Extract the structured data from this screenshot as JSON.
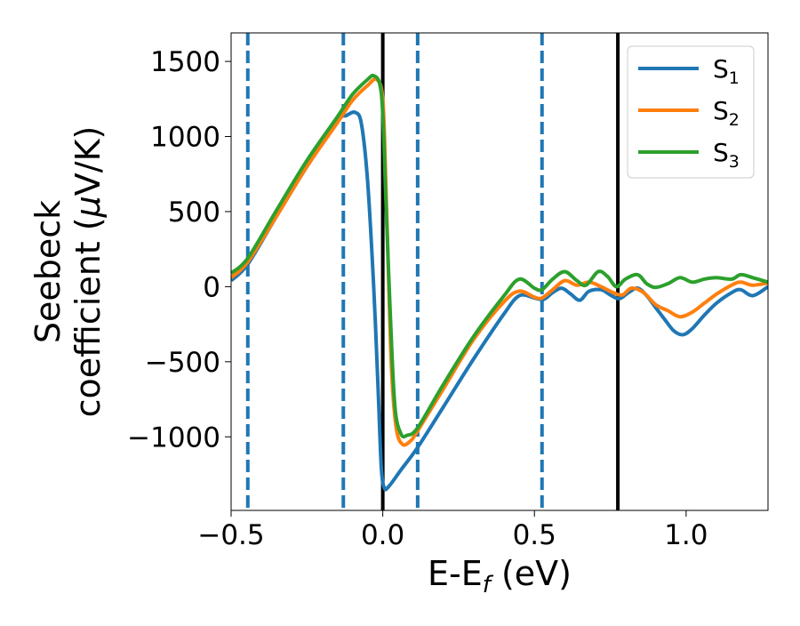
{
  "chart_data": {
    "type": "line",
    "xlabel": "E-E",
    "xlabel_sub": "f",
    "xlabel_unit": " (eV)",
    "ylabel_line1": "Seebeck",
    "ylabel_line2_pre": "coefficient  (",
    "ylabel_mu": "μ",
    "ylabel_line2_post": "V/K)",
    "xlim": [
      -0.5,
      1.27
    ],
    "ylim": [
      -1490,
      1690
    ],
    "xticks": [
      -0.5,
      0.0,
      0.5,
      1.0
    ],
    "xtick_labels": [
      "−0.5",
      "0.0",
      "0.5",
      "1.0"
    ],
    "yticks": [
      -1000,
      -500,
      0,
      500,
      1000,
      1500
    ],
    "ytick_labels": [
      "−1000",
      "−500",
      "0",
      "500",
      "1000",
      "1500"
    ],
    "grid": false,
    "legend_position": "top-right",
    "dashed_vlines": [
      -0.445,
      -0.13,
      0.115,
      0.525
    ],
    "dashed_vline_color": "#1f77b4",
    "solid_vlines": [
      0.0,
      0.775
    ],
    "solid_vline_color": "#000000",
    "series": [
      {
        "name": "S",
        "sub": "1",
        "color": "#1f77b4",
        "points": [
          [
            -0.5,
            40
          ],
          [
            -0.445,
            150
          ],
          [
            -0.35,
            470
          ],
          [
            -0.25,
            800
          ],
          [
            -0.15,
            1100
          ],
          [
            -0.12,
            1140
          ],
          [
            -0.09,
            1160
          ],
          [
            -0.07,
            1080
          ],
          [
            -0.05,
            700
          ],
          [
            -0.03,
            0
          ],
          [
            -0.015,
            -700
          ],
          [
            -0.005,
            -1200
          ],
          [
            0.005,
            -1340
          ],
          [
            0.02,
            -1330
          ],
          [
            0.06,
            -1220
          ],
          [
            0.115,
            -1070
          ],
          [
            0.2,
            -800
          ],
          [
            0.3,
            -480
          ],
          [
            0.4,
            -180
          ],
          [
            0.45,
            -60
          ],
          [
            0.5,
            -75
          ],
          [
            0.53,
            -85
          ],
          [
            0.56,
            -40
          ],
          [
            0.59,
            -10
          ],
          [
            0.62,
            -50
          ],
          [
            0.65,
            -90
          ],
          [
            0.68,
            -30
          ],
          [
            0.72,
            -20
          ],
          [
            0.75,
            -55
          ],
          [
            0.78,
            -80
          ],
          [
            0.81,
            -40
          ],
          [
            0.84,
            -10
          ],
          [
            0.87,
            -60
          ],
          [
            0.9,
            -140
          ],
          [
            0.93,
            -220
          ],
          [
            0.96,
            -295
          ],
          [
            0.99,
            -320
          ],
          [
            1.02,
            -280
          ],
          [
            1.06,
            -190
          ],
          [
            1.1,
            -110
          ],
          [
            1.15,
            -40
          ],
          [
            1.18,
            -20
          ],
          [
            1.22,
            -60
          ],
          [
            1.27,
            0
          ]
        ]
      },
      {
        "name": "S",
        "sub": "2",
        "color": "#ff7f0e",
        "points": [
          [
            -0.5,
            60
          ],
          [
            -0.445,
            165
          ],
          [
            -0.35,
            470
          ],
          [
            -0.25,
            800
          ],
          [
            -0.15,
            1090
          ],
          [
            -0.1,
            1240
          ],
          [
            -0.05,
            1340
          ],
          [
            -0.02,
            1380
          ],
          [
            0.0,
            1250
          ],
          [
            0.01,
            700
          ],
          [
            0.02,
            0
          ],
          [
            0.03,
            -600
          ],
          [
            0.045,
            -950
          ],
          [
            0.065,
            -1050
          ],
          [
            0.09,
            -1030
          ],
          [
            0.115,
            -960
          ],
          [
            0.2,
            -680
          ],
          [
            0.3,
            -350
          ],
          [
            0.4,
            -100
          ],
          [
            0.45,
            -30
          ],
          [
            0.5,
            -70
          ],
          [
            0.525,
            -75
          ],
          [
            0.56,
            -20
          ],
          [
            0.6,
            40
          ],
          [
            0.64,
            10
          ],
          [
            0.68,
            30
          ],
          [
            0.72,
            0
          ],
          [
            0.76,
            -40
          ],
          [
            0.79,
            -55
          ],
          [
            0.82,
            -10
          ],
          [
            0.86,
            -40
          ],
          [
            0.9,
            -120
          ],
          [
            0.94,
            -160
          ],
          [
            0.98,
            -200
          ],
          [
            1.02,
            -170
          ],
          [
            1.06,
            -110
          ],
          [
            1.1,
            -50
          ],
          [
            1.15,
            10
          ],
          [
            1.18,
            30
          ],
          [
            1.22,
            10
          ],
          [
            1.27,
            25
          ]
        ]
      },
      {
        "name": "S",
        "sub": "3",
        "color": "#2ca02c",
        "points": [
          [
            -0.5,
            90
          ],
          [
            -0.445,
            190
          ],
          [
            -0.35,
            510
          ],
          [
            -0.25,
            840
          ],
          [
            -0.15,
            1130
          ],
          [
            -0.1,
            1280
          ],
          [
            -0.05,
            1380
          ],
          [
            -0.03,
            1405
          ],
          [
            -0.01,
            1350
          ],
          [
            0.0,
            1150
          ],
          [
            0.01,
            600
          ],
          [
            0.025,
            -200
          ],
          [
            0.04,
            -800
          ],
          [
            0.06,
            -980
          ],
          [
            0.08,
            -990
          ],
          [
            0.115,
            -940
          ],
          [
            0.2,
            -650
          ],
          [
            0.3,
            -330
          ],
          [
            0.4,
            -60
          ],
          [
            0.45,
            50
          ],
          [
            0.5,
            -10
          ],
          [
            0.525,
            -20
          ],
          [
            0.56,
            50
          ],
          [
            0.6,
            100
          ],
          [
            0.64,
            40
          ],
          [
            0.67,
            10
          ],
          [
            0.71,
            100
          ],
          [
            0.74,
            70
          ],
          [
            0.77,
            0
          ],
          [
            0.8,
            50
          ],
          [
            0.84,
            80
          ],
          [
            0.87,
            20
          ],
          [
            0.9,
            -5
          ],
          [
            0.94,
            20
          ],
          [
            0.98,
            60
          ],
          [
            1.02,
            30
          ],
          [
            1.06,
            50
          ],
          [
            1.1,
            60
          ],
          [
            1.15,
            50
          ],
          [
            1.18,
            80
          ],
          [
            1.22,
            60
          ],
          [
            1.27,
            30
          ]
        ]
      }
    ]
  }
}
